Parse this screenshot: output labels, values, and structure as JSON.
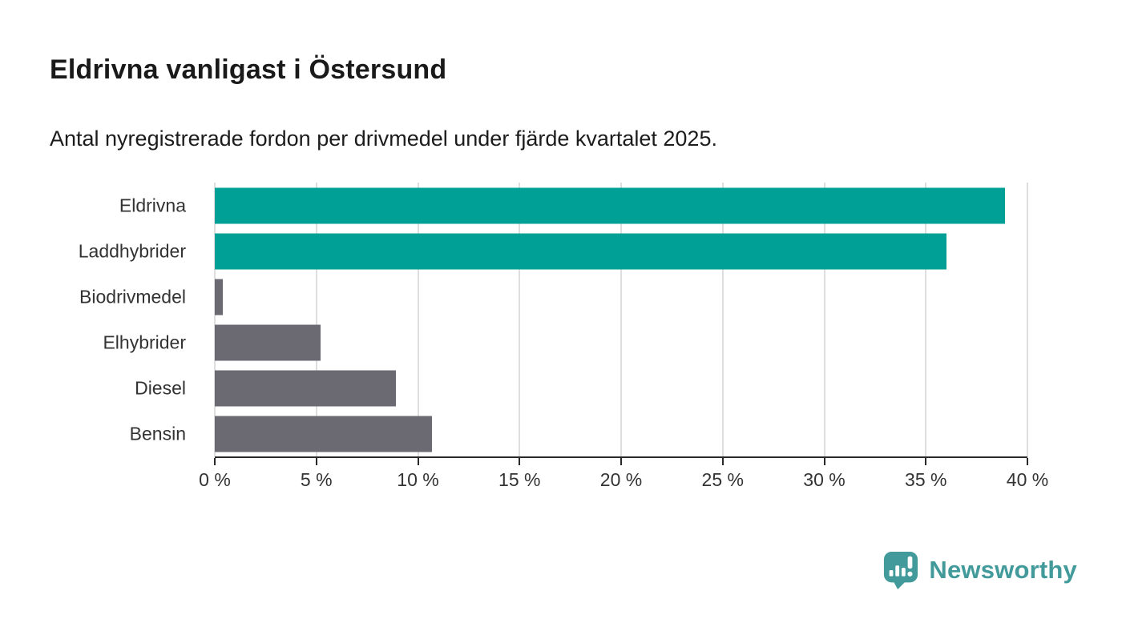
{
  "header": {
    "title": "Eldrivna vanligast i Östersund",
    "subtitle": "Antal nyregistrerade fordon per drivmedel under fjärde kvartalet 2025."
  },
  "chart_data": {
    "type": "bar",
    "orientation": "horizontal",
    "title": "Eldrivna vanligast i Östersund",
    "subtitle": "Antal nyregistrerade fordon per drivmedel under fjärde kvartalet 2025.",
    "categories": [
      "Eldrivna",
      "Laddhybrider",
      "Biodrivmedel",
      "Elhybrider",
      "Diesel",
      "Bensin"
    ],
    "values": [
      38.9,
      36.0,
      0.4,
      5.2,
      8.9,
      10.7
    ],
    "unit": "%",
    "bar_colors": [
      "#00A096",
      "#00A096",
      "#6B6A72",
      "#6B6A72",
      "#6B6A72",
      "#6B6A72"
    ],
    "xlim": [
      0,
      40
    ],
    "x_tick_values": [
      0,
      5,
      10,
      15,
      20,
      25,
      30,
      35,
      40
    ],
    "x_tick_labels": [
      "0 %",
      "5 %",
      "10 %",
      "15 %",
      "20 %",
      "25 %",
      "30 %",
      "35 %",
      "40 %"
    ],
    "xlabel": "",
    "ylabel": "",
    "grid": "vertical-only",
    "legend": "none"
  },
  "branding": {
    "logo_text": "Newsworthy",
    "logo_color": "#429A9A",
    "logo_icon": "speech-bubble-bar-chart-exclamation"
  },
  "colors": {
    "accent_teal": "#00A096",
    "neutral_gray": "#6B6A72",
    "gridline": "#DEDEDE",
    "axis_line": "#2A2A2A",
    "text_dark": "#1A1A1A",
    "text_axis": "#333333",
    "background": "#FFFFFF"
  }
}
